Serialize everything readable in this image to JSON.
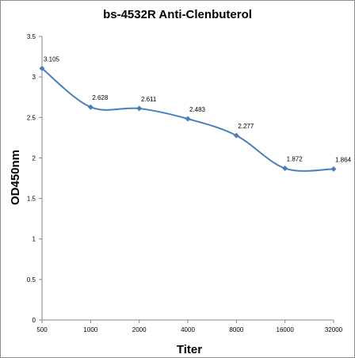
{
  "chart_data": {
    "type": "line",
    "title": "bs-4532R Anti-Clenbuterol",
    "xlabel": "Titer",
    "ylabel": "OD450nm",
    "categories": [
      "500",
      "1000",
      "2000",
      "4000",
      "8000",
      "16000",
      "32000"
    ],
    "series": [
      {
        "values": [
          3.105,
          2.628,
          2.611,
          2.483,
          2.277,
          1.872,
          1.864
        ],
        "data_labels": [
          "3.105",
          "2.628",
          "2.611",
          "2.483",
          "2.277",
          "1.872",
          "1.864"
        ],
        "color": "#4a7ebb",
        "marker": "diamond",
        "smooth": true
      }
    ],
    "ylim": [
      0,
      3.5
    ],
    "yticks": [
      "0",
      "0.5",
      "1",
      "1.5",
      "2",
      "2.5",
      "3",
      "3.5"
    ],
    "grid": false,
    "legend": "none"
  }
}
